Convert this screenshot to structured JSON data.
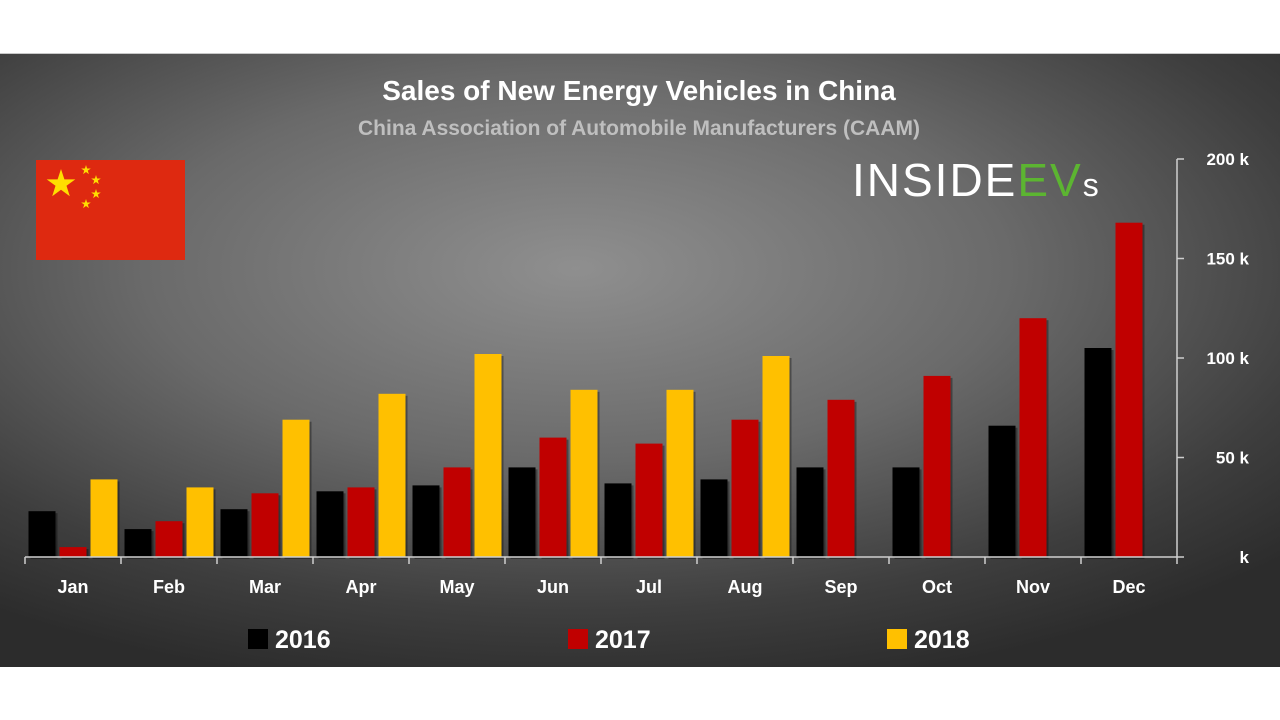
{
  "chart_data": {
    "type": "bar",
    "title": "Sales of New Energy Vehicles in China",
    "subtitle": "China Association of Automobile Manufacturers (CAAM)",
    "categories": [
      "Jan",
      "Feb",
      "Mar",
      "Apr",
      "May",
      "Jun",
      "Jul",
      "Aug",
      "Sep",
      "Oct",
      "Nov",
      "Dec"
    ],
    "series": [
      {
        "name": "2016",
        "color": "#000000",
        "values": [
          23,
          14,
          24,
          33,
          36,
          45,
          37,
          39,
          45,
          45,
          66,
          105
        ]
      },
      {
        "name": "2017",
        "color": "#c00000",
        "values": [
          5,
          18,
          32,
          35,
          45,
          60,
          57,
          69,
          79,
          91,
          120,
          168
        ]
      },
      {
        "name": "2018",
        "color": "#ffc000",
        "values": [
          39,
          35,
          69,
          82,
          102,
          84,
          84,
          101,
          null,
          null,
          null,
          null
        ]
      }
    ],
    "y_ticks": [
      {
        "value": 0,
        "label": "k"
      },
      {
        "value": 50,
        "label": "50 k"
      },
      {
        "value": 100,
        "label": "100 k"
      },
      {
        "value": 150,
        "label": "150 k"
      },
      {
        "value": 200,
        "label": "200 k"
      }
    ],
    "ylim": [
      0,
      200
    ],
    "xlabel": "",
    "ylabel": "",
    "legend_position": "bottom",
    "grid": false,
    "axis_position": "right"
  },
  "logo": {
    "text_main": "INSIDE",
    "text_accent": "EV",
    "text_suffix": "s",
    "main_color": "#ffffff",
    "accent_color": "#5cb531"
  },
  "flag": {
    "field_color": "#de2910",
    "star_color": "#ffde00"
  }
}
